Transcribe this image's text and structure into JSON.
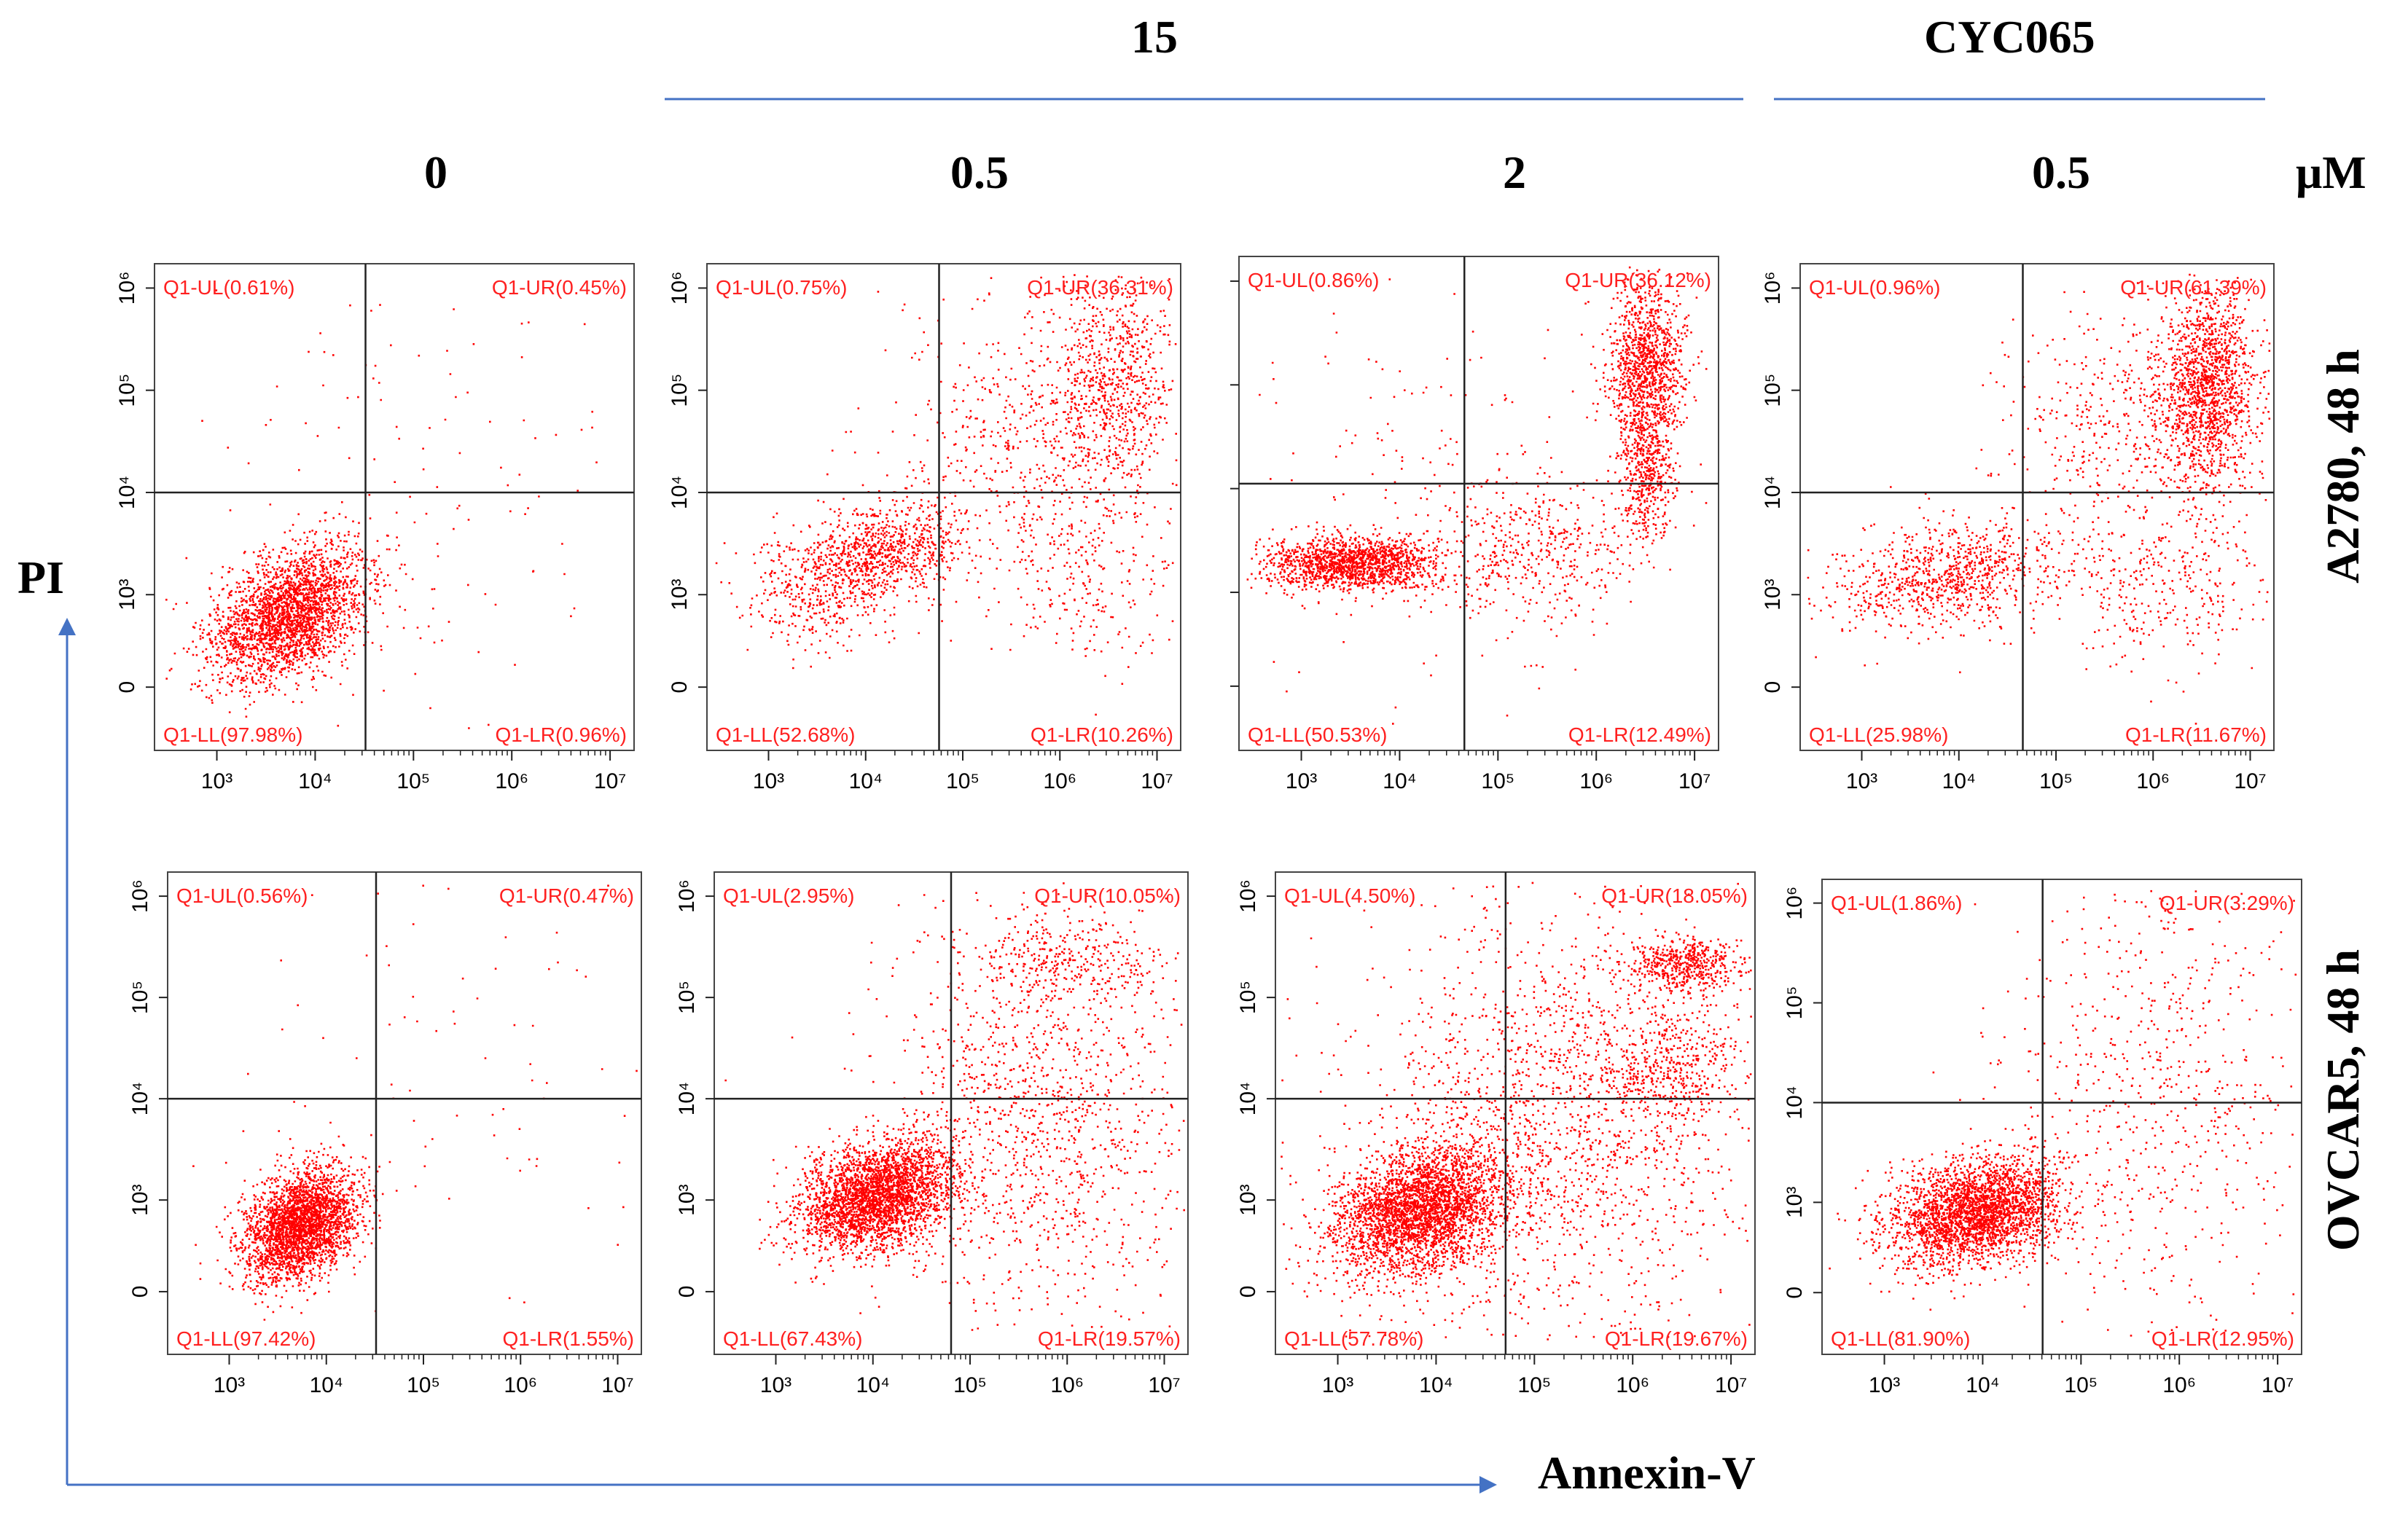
{
  "header": {
    "compound_15": "15",
    "compound_cyc": "CYC065",
    "unit": "μM",
    "concentrations": [
      "0",
      "0.5",
      "2",
      "0.5"
    ]
  },
  "row_labels": [
    "A2780, 48 h",
    "OVCAR5, 48 h"
  ],
  "axes": {
    "y_label": "PI",
    "x_label": "Annexin-V"
  },
  "colors": {
    "dots": "#ff0000",
    "quad_text": "#ff2020",
    "bracket": "#4472c4",
    "axis_arrow": "#4472c4"
  },
  "chart_data": [
    {
      "type": "scatter",
      "panel": "A2780 0 μM",
      "x_scale": "log",
      "x_ticks": [
        "10³",
        "10⁴",
        "10⁵",
        "10⁶",
        "10⁷"
      ],
      "y_scale": "log",
      "y_ticks": [
        "0",
        "10³",
        "10⁴",
        "10⁵",
        "10⁶"
      ],
      "quadrants": {
        "UL": "Q1-UL(0.61%)",
        "UR": "Q1-UR(0.45%)",
        "LL": "Q1-LL(97.98%)",
        "LR": "Q1-LR(0.96%)"
      },
      "percent": {
        "UL": 0.61,
        "UR": 0.45,
        "LL": 97.98,
        "LR": 0.96
      }
    },
    {
      "type": "scatter",
      "panel": "A2780 15 0.5 μM",
      "x_scale": "log",
      "x_ticks": [
        "10³",
        "10⁴",
        "10⁵",
        "10⁶",
        "10⁷"
      ],
      "y_scale": "log",
      "y_ticks": [
        "0",
        "10³",
        "10⁴",
        "10⁵",
        "10⁶"
      ],
      "quadrants": {
        "UL": "Q1-UL(0.75%)",
        "UR": "Q1-UR(36.31%)",
        "LL": "Q1-LL(52.68%)",
        "LR": "Q1-LR(10.26%)"
      },
      "percent": {
        "UL": 0.75,
        "UR": 36.31,
        "LL": 52.68,
        "LR": 10.26
      }
    },
    {
      "type": "scatter",
      "panel": "A2780 15 2 μM",
      "x_scale": "log",
      "x_ticks": [
        "10³",
        "10⁴",
        "10⁵",
        "10⁶",
        "10⁷"
      ],
      "y_scale": "log",
      "y_ticks": [
        "",
        "",
        "",
        "",
        ""
      ],
      "quadrants": {
        "UL": "Q1-UL(0.86%)",
        "UR": "Q1-UR(36.12%)",
        "LL": "Q1-LL(50.53%)",
        "LR": "Q1-LR(12.49%)"
      },
      "percent": {
        "UL": 0.86,
        "UR": 36.12,
        "LL": 50.53,
        "LR": 12.49
      }
    },
    {
      "type": "scatter",
      "panel": "A2780 CYC065 0.5 μM",
      "x_scale": "log",
      "x_ticks": [
        "10³",
        "10⁴",
        "10⁵",
        "10⁶",
        "10⁷"
      ],
      "y_scale": "log",
      "y_ticks": [
        "0",
        "10³",
        "10⁴",
        "10⁵",
        "10⁶"
      ],
      "quadrants": {
        "UL": "Q1-UL(0.96%)",
        "UR": "Q1-UR(61.39%)",
        "LL": "Q1-LL(25.98%)",
        "LR": "Q1-LR(11.67%)"
      },
      "percent": {
        "UL": 0.96,
        "UR": 61.39,
        "LL": 25.98,
        "LR": 11.67
      }
    },
    {
      "type": "scatter",
      "panel": "OVCAR5 0 μM",
      "x_scale": "log",
      "x_ticks": [
        "10³",
        "10⁴",
        "10⁵",
        "10⁶",
        "10⁷"
      ],
      "y_scale": "log",
      "y_ticks": [
        "0",
        "10³",
        "10⁴",
        "10⁵",
        "10⁶"
      ],
      "quadrants": {
        "UL": "Q1-UL(0.56%)",
        "UR": "Q1-UR(0.47%)",
        "LL": "Q1-LL(97.42%)",
        "LR": "Q1-LR(1.55%)"
      },
      "percent": {
        "UL": 0.56,
        "UR": 0.47,
        "LL": 97.42,
        "LR": 1.55
      }
    },
    {
      "type": "scatter",
      "panel": "OVCAR5 15 0.5 μM",
      "x_scale": "log",
      "x_ticks": [
        "10³",
        "10⁴",
        "10⁵",
        "10⁶",
        "10⁷"
      ],
      "y_scale": "log",
      "y_ticks": [
        "0",
        "10³",
        "10⁴",
        "10⁵",
        "10⁶"
      ],
      "quadrants": {
        "UL": "Q1-UL(2.95%)",
        "UR": "Q1-UR(10.05%)",
        "LL": "Q1-LL(67.43%)",
        "LR": "Q1-LR(19.57%)"
      },
      "percent": {
        "UL": 2.95,
        "UR": 10.05,
        "LL": 67.43,
        "LR": 19.57
      }
    },
    {
      "type": "scatter",
      "panel": "OVCAR5 15 2 μM",
      "x_scale": "log",
      "x_ticks": [
        "10³",
        "10⁴",
        "10⁵",
        "10⁶",
        "10⁷"
      ],
      "y_scale": "log",
      "y_ticks": [
        "0",
        "10³",
        "10⁴",
        "10⁵",
        "10⁶"
      ],
      "quadrants": {
        "UL": "Q1-UL(4.50%)",
        "UR": "Q1-UR(18.05%)",
        "LL": "Q1-LL(57.78%)",
        "LR": "Q1-LR(19.67%)"
      },
      "percent": {
        "UL": 4.5,
        "UR": 18.05,
        "LL": 57.78,
        "LR": 19.67
      }
    },
    {
      "type": "scatter",
      "panel": "OVCAR5 CYC065 0.5 μM",
      "x_scale": "log",
      "x_ticks": [
        "10³",
        "10⁴",
        "10⁵",
        "10⁶",
        "10⁷"
      ],
      "y_scale": "log",
      "y_ticks": [
        "0",
        "10³",
        "10⁴",
        "10⁵",
        "10⁶"
      ],
      "quadrants": {
        "UL": "Q1-UL(1.86%)",
        "UR": "Q1-UR(3.29%)",
        "LL": "Q1-LL(81.90%)",
        "LR": "Q1-LR(12.95%)"
      },
      "percent": {
        "UL": 1.86,
        "UR": 3.29,
        "LL": 81.9,
        "LR": 12.95
      }
    }
  ]
}
